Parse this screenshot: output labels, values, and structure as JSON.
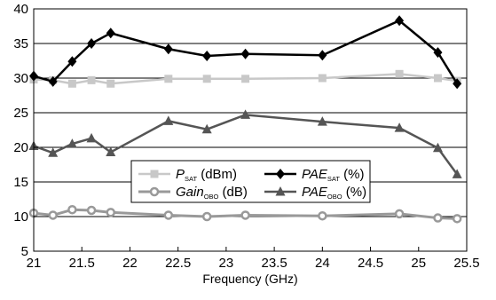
{
  "chart_data": {
    "type": "line",
    "title": "",
    "xlabel": "Frequency (GHz)",
    "ylabel": "",
    "xlim": [
      21,
      25.5
    ],
    "ylim": [
      5,
      40
    ],
    "xticks": [
      "21",
      "21.5",
      "22",
      "22.5",
      "23",
      "23.5",
      "24",
      "24.5",
      "25",
      "25.5"
    ],
    "yticks": [
      "5",
      "10",
      "15",
      "20",
      "25",
      "30",
      "35",
      "40"
    ],
    "grid": "horizontal",
    "legend_position": "center",
    "series": [
      {
        "name": "PSAT (dBm)",
        "label_main": "P",
        "label_sub": "SAT",
        "label_unit": " (dBm)",
        "italic": true,
        "color": "#c8c8c8",
        "marker": "square",
        "x": [
          21,
          21.2,
          21.4,
          21.6,
          21.8,
          22.4,
          22.8,
          23.2,
          24,
          24.8,
          25.2,
          25.4
        ],
        "values": [
          29.8,
          29.7,
          29.2,
          29.7,
          29.2,
          29.9,
          29.9,
          29.9,
          30.0,
          30.6,
          30.0,
          29.6
        ]
      },
      {
        "name": "PAESAT (%)",
        "label_main": "PAE",
        "label_sub": "SAT",
        "label_unit": " (%)",
        "italic": true,
        "color": "#000000",
        "marker": "diamond",
        "x": [
          21,
          21.2,
          21.4,
          21.6,
          21.8,
          22.4,
          22.8,
          23.2,
          24,
          24.8,
          25.2,
          25.4
        ],
        "values": [
          30.3,
          29.5,
          32.4,
          35.0,
          36.5,
          34.2,
          33.2,
          33.5,
          33.3,
          38.3,
          33.7,
          29.2
        ]
      },
      {
        "name": "GainOBO (dB)",
        "label_main": "Gain",
        "label_sub": "OBO",
        "label_unit": " (dB)",
        "italic": true,
        "color": "#999999",
        "marker": "circle",
        "x": [
          21,
          21.2,
          21.4,
          21.6,
          21.8,
          22.4,
          22.8,
          23.2,
          24,
          24.8,
          25.2,
          25.4
        ],
        "values": [
          10.5,
          10.2,
          11.0,
          10.9,
          10.6,
          10.2,
          10.0,
          10.2,
          10.1,
          10.4,
          9.8,
          9.7
        ]
      },
      {
        "name": "PAEOBO (%)",
        "label_main": "PAE",
        "label_sub": "OBO",
        "label_unit": " (%)",
        "italic": true,
        "color": "#555555",
        "marker": "triangle",
        "x": [
          21,
          21.2,
          21.4,
          21.6,
          21.8,
          22.4,
          22.8,
          23.2,
          24,
          24.8,
          25.2,
          25.4
        ],
        "values": [
          20.2,
          19.2,
          20.5,
          21.3,
          19.3,
          23.8,
          22.6,
          24.7,
          23.7,
          22.8,
          19.9,
          16.1
        ]
      }
    ]
  }
}
